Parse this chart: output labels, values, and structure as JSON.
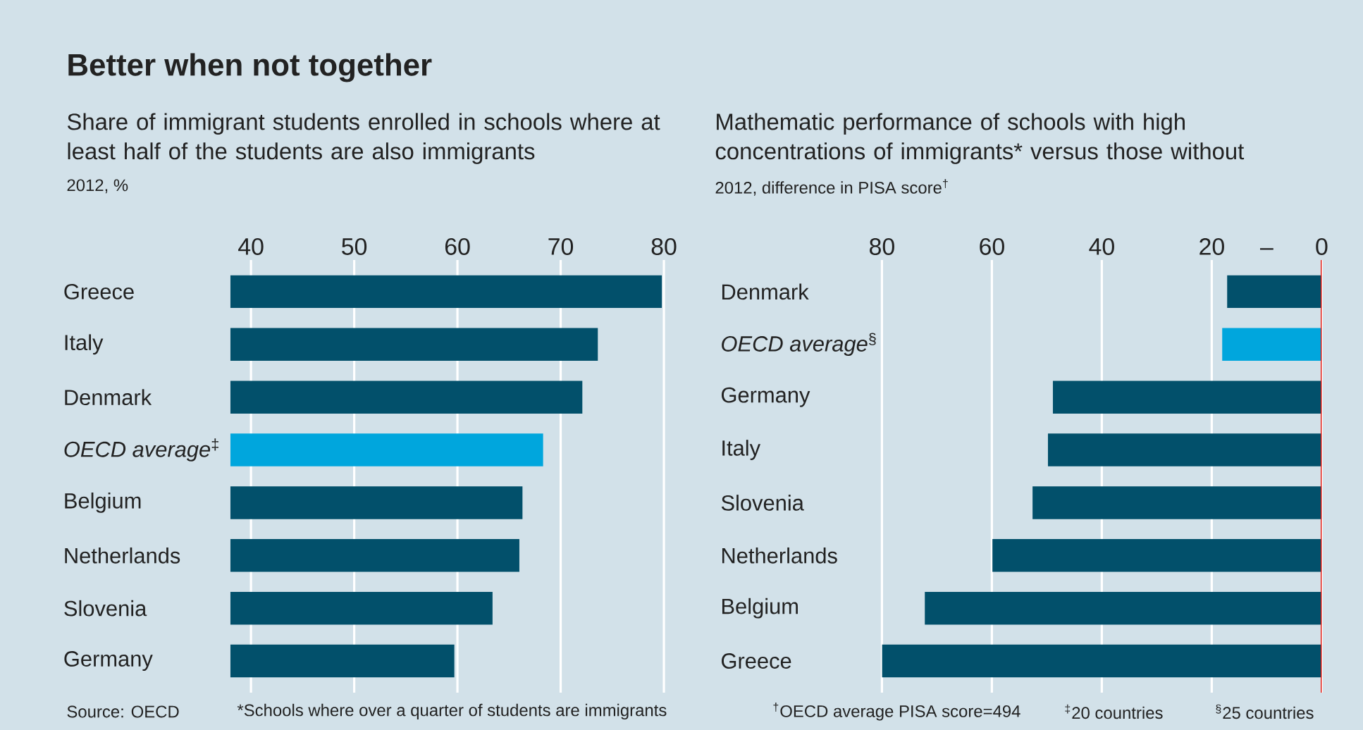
{
  "chart_data": [
    {
      "type": "bar",
      "orientation": "horizontal",
      "title": "Share of immigrant students enrolled in schools where at least half of the students are also immigrants",
      "subtitle": "2012, %",
      "categories": [
        "Greece",
        "Italy",
        "Denmark",
        "*OECD average*$^{‡}$",
        "Belgium",
        "Netherlands",
        "Slovenia",
        "Germany"
      ],
      "values": [
        79.8,
        73.6,
        72.1,
        68.3,
        66.3,
        66.0,
        63.4,
        59.7
      ],
      "colors": [
        "#02506b",
        "#02506b",
        "#02506b",
        "#00a6dd",
        "#02506b",
        "#02506b",
        "#02506b",
        "#02506b"
      ],
      "xlim": [
        38,
        80
      ],
      "xticks": [
        40,
        50,
        60,
        70,
        80
      ],
      "grid": "x",
      "annotations": [
        "Better when not together",
        "Source: OECD",
        "$^{‡}$20 countries"
      ]
    },
    {
      "type": "bar",
      "orientation": "horizontal",
      "title": "Mathematic performance of schools with high concentrations of immigrants* versus those without",
      "subtitle": "2012, difference in PISA score$^{†}$",
      "categories": [
        "Denmark",
        "*OECD average*$^{§}$",
        "Germany",
        "Italy",
        "Slovenia",
        "Netherlands",
        "Belgium",
        "Greece"
      ],
      "values": [
        17.2,
        18.1,
        48.9,
        49.8,
        52.6,
        59.9,
        72.2,
        80.0
      ],
      "colors": [
        "#02506b",
        "#00a6dd",
        "#02506b",
        "#02506b",
        "#02506b",
        "#02506b",
        "#02506b",
        "#02506b"
      ],
      "xlim": [
        80,
        0
      ],
      "xticks": [
        80,
        60,
        40,
        20,
        {
          "value": 10,
          "label": "–"
        },
        0
      ],
      "grid": "x",
      "ref_lines": [
        {
          "axis": "x",
          "value": 0,
          "color": "#e3120b"
        }
      ],
      "annotations": [
        "*Schools where over a quarter of students are immigrants",
        "$^{†}$OECD average PISA score=494",
        "$^{§}$25 countries"
      ]
    }
  ]
}
